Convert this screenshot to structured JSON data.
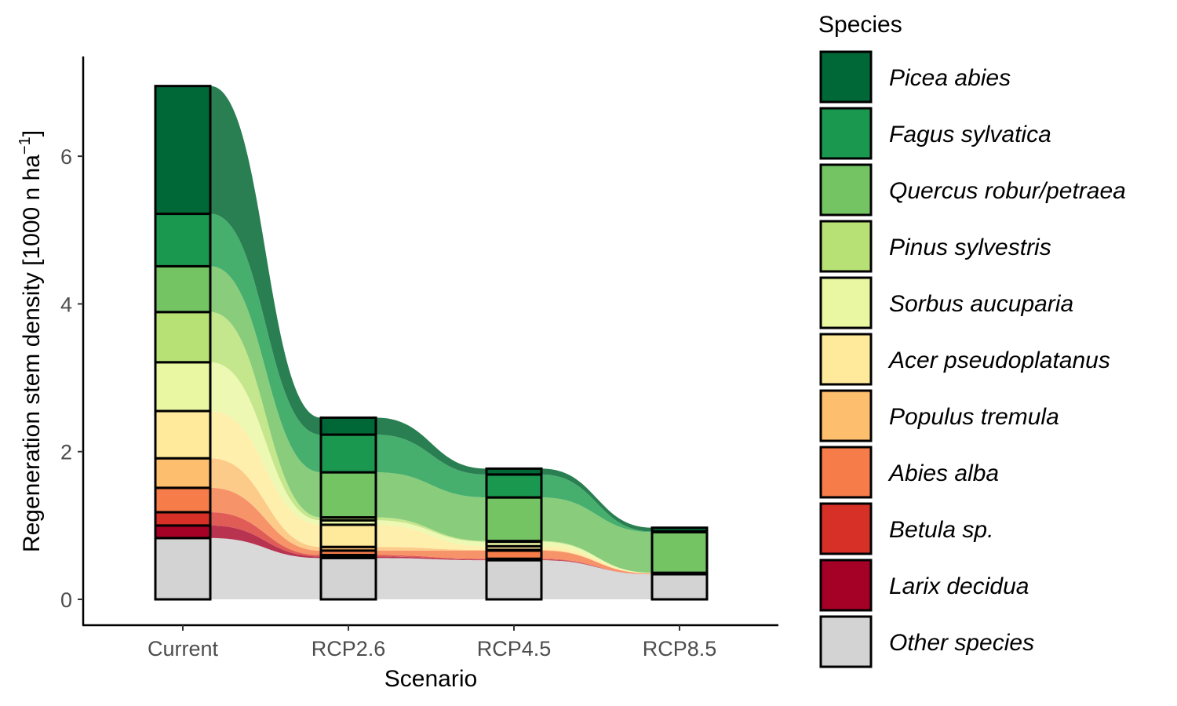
{
  "chart_data": {
    "type": "bar",
    "subtype": "stacked-bar-with-alluvial-flows",
    "xlabel": "Scenario",
    "ylabel_main": "Regeneration stem density [1000 n ha",
    "ylabel_sup": "−1",
    "ylabel_end": "]",
    "categories": [
      "Current",
      "RCP2.6",
      "RCP4.5",
      "RCP8.5"
    ],
    "ylim": [
      -0.35,
      7.35
    ],
    "yticks": [
      "0",
      "2",
      "4",
      "6"
    ],
    "legend": {
      "title": "Species",
      "position": "right"
    },
    "series": [
      {
        "name": "Picea abies",
        "color": "#006837",
        "flow_color": "#2A7F52",
        "values": [
          1.73,
          0.23,
          0.08,
          0.05
        ]
      },
      {
        "name": "Fagus sylvatica",
        "color": "#1A9850",
        "flow_color": "#47AF6E",
        "values": [
          0.71,
          0.51,
          0.31,
          0.01
        ]
      },
      {
        "name": "Quercus robur/petraea",
        "color": "#74C464",
        "flow_color": "#89CD7C",
        "values": [
          0.62,
          0.61,
          0.59,
          0.55
        ]
      },
      {
        "name": "Pinus sylvestris",
        "color": "#B7E075",
        "flow_color": "#C4E68D",
        "values": [
          0.68,
          0.04,
          0.01,
          0.0
        ]
      },
      {
        "name": "Sorbus aucuparia",
        "color": "#E9F6A2",
        "flow_color": "#EDF8B2",
        "values": [
          0.66,
          0.06,
          0.06,
          0.0
        ]
      },
      {
        "name": "Acer pseudoplatanus",
        "color": "#FEEA9A",
        "flow_color": "#FEEFAC",
        "values": [
          0.64,
          0.3,
          0.05,
          0.01
        ]
      },
      {
        "name": "Populus tremula",
        "color": "#FDBE6E",
        "flow_color": "#FDCB89",
        "values": [
          0.4,
          0.05,
          0.01,
          0.0
        ]
      },
      {
        "name": "Abies alba",
        "color": "#F67C4A",
        "flow_color": "#F79369",
        "values": [
          0.33,
          0.06,
          0.11,
          0.01
        ]
      },
      {
        "name": "Betula sp.",
        "color": "#D73027",
        "flow_color": "#E05D57",
        "values": [
          0.18,
          0.02,
          0.01,
          0.0
        ]
      },
      {
        "name": "Larix decidua",
        "color": "#A50026",
        "flow_color": "#B83350",
        "values": [
          0.17,
          0.02,
          0.01,
          0.0
        ]
      },
      {
        "name": "Other species",
        "color": "#D3D3D3",
        "flow_color": "#D9D9D9",
        "values": [
          0.83,
          0.56,
          0.53,
          0.34
        ]
      }
    ]
  }
}
